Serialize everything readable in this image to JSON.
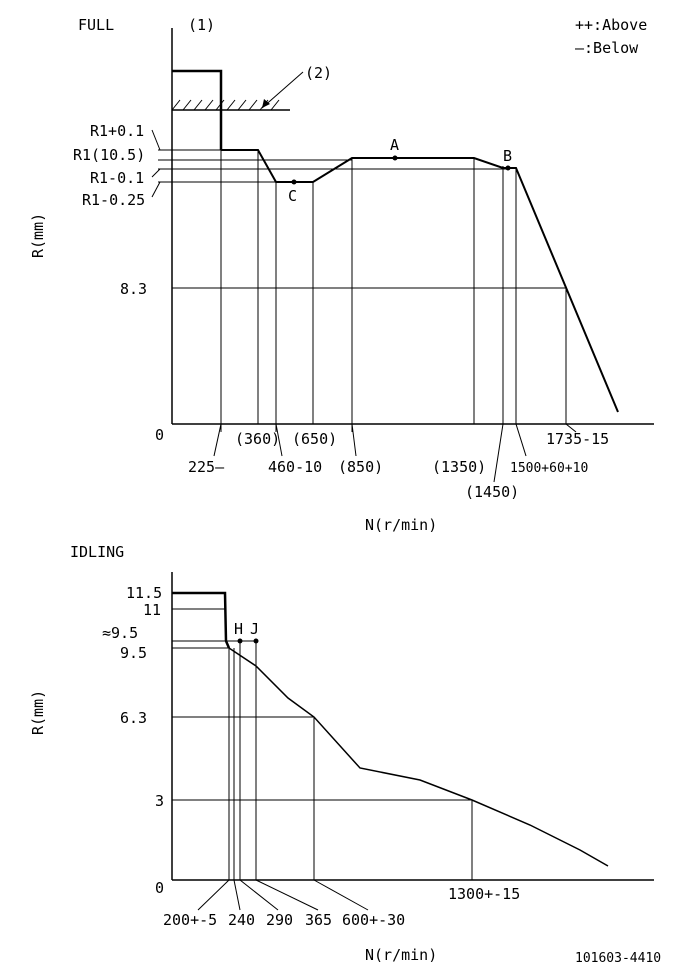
{
  "legend": {
    "above": "++:Above",
    "below": "—:Below"
  },
  "full": {
    "title": "FULL",
    "ylabel": "R(mm)",
    "xlabel": "N(r/min)",
    "note_1": "(1)",
    "note_2": "(2)",
    "y_labels": {
      "r1_plus": "R1+0.1",
      "r1": "R1(10.5)",
      "r1_minus": "R1-0.1",
      "r1_minus025": "R1-0.25",
      "v83": "8.3",
      "zero": "0"
    },
    "points": {
      "A": "A",
      "B": "B",
      "C": "C"
    },
    "x_labels": {
      "x225": "225—",
      "x360": "(360)",
      "x460": "460-10",
      "x650": "(650)",
      "x850": "(850)",
      "x1350": "(1350)",
      "x1450": "(1450)",
      "x1500": "1500+60+10",
      "x1735": "1735-15"
    }
  },
  "idling": {
    "title": "IDLING",
    "ylabel": "R(mm)",
    "xlabel": "N(r/min)",
    "y_labels": {
      "v115": "11.5",
      "v11": "11",
      "v95a": "≈9.5",
      "v95": "9.5",
      "v63": "6.3",
      "v3": "3",
      "zero": "0"
    },
    "points": {
      "H": "H",
      "J": "J"
    },
    "x_labels": {
      "x200": "200+-5",
      "x240": "240",
      "x290": "290",
      "x365": "365",
      "x600": "600+-30",
      "x1300": "1300+-15"
    }
  },
  "doc_id": "101603-4410"
}
